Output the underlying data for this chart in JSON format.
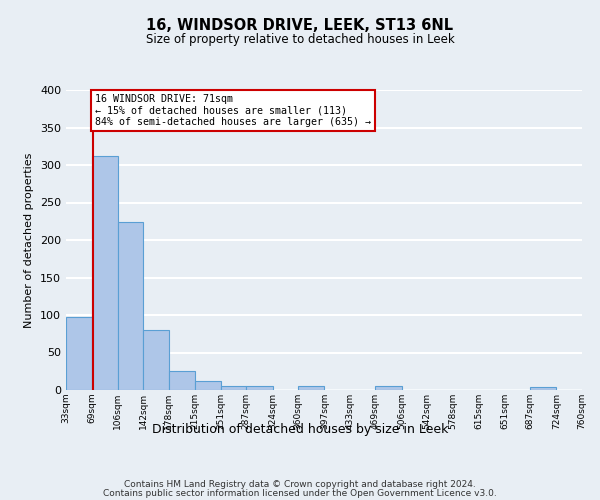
{
  "title": "16, WINDSOR DRIVE, LEEK, ST13 6NL",
  "subtitle": "Size of property relative to detached houses in Leek",
  "xlabel": "Distribution of detached houses by size in Leek",
  "ylabel": "Number of detached properties",
  "bin_edges": [
    33,
    69,
    106,
    142,
    178,
    215,
    251,
    287,
    324,
    360,
    397,
    433,
    469,
    506,
    542,
    578,
    615,
    651,
    687,
    724,
    760
  ],
  "bin_labels": [
    "33sqm",
    "69sqm",
    "106sqm",
    "142sqm",
    "178sqm",
    "215sqm",
    "251sqm",
    "287sqm",
    "324sqm",
    "360sqm",
    "397sqm",
    "433sqm",
    "469sqm",
    "506sqm",
    "542sqm",
    "578sqm",
    "615sqm",
    "651sqm",
    "687sqm",
    "724sqm",
    "760sqm"
  ],
  "counts": [
    97,
    312,
    224,
    80,
    25,
    12,
    6,
    5,
    0,
    6,
    0,
    0,
    6,
    0,
    0,
    0,
    0,
    0,
    4,
    0
  ],
  "bar_color": "#aec6e8",
  "bar_edge_color": "#5a9fd4",
  "property_line_x": 71,
  "property_line_color": "#cc0000",
  "annotation_text": "16 WINDSOR DRIVE: 71sqm\n← 15% of detached houses are smaller (113)\n84% of semi-detached houses are larger (635) →",
  "annotation_box_color": "#ffffff",
  "annotation_box_edge": "#cc0000",
  "ylim": [
    0,
    400
  ],
  "yticks": [
    0,
    50,
    100,
    150,
    200,
    250,
    300,
    350,
    400
  ],
  "footer_line1": "Contains HM Land Registry data © Crown copyright and database right 2024.",
  "footer_line2": "Contains public sector information licensed under the Open Government Licence v3.0.",
  "background_color": "#e8eef4",
  "grid_color": "#ffffff"
}
